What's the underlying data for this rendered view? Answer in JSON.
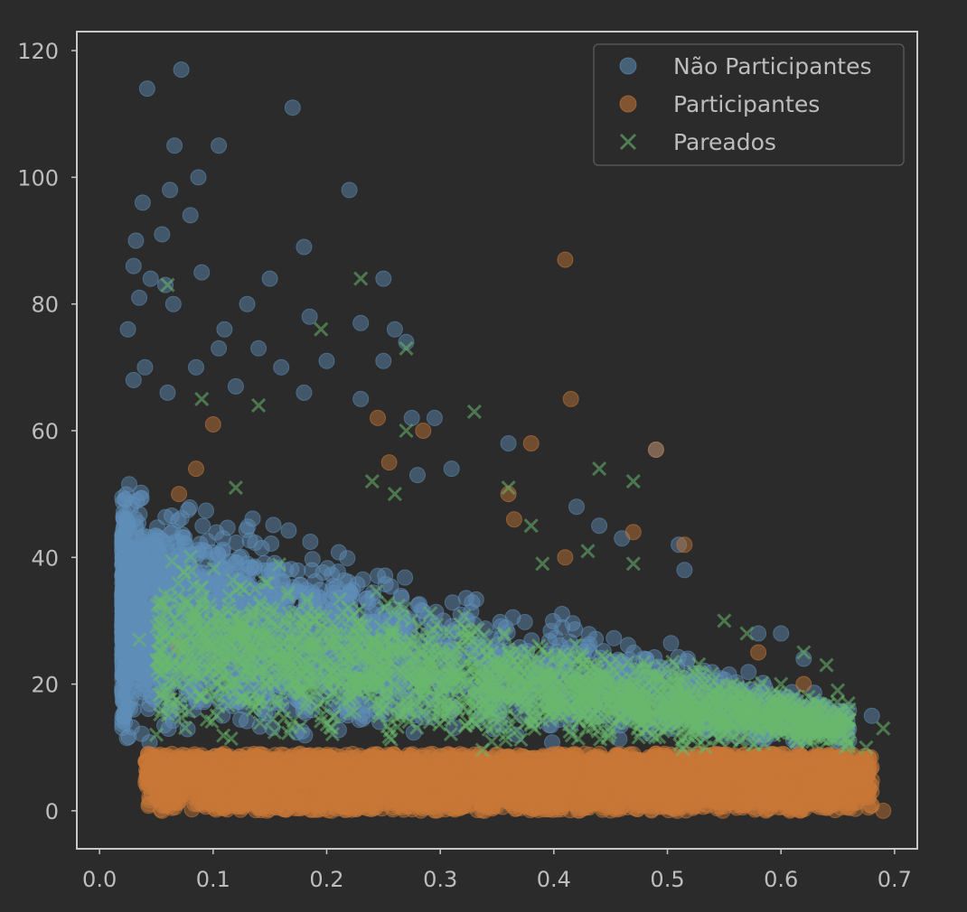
{
  "colors": {
    "background": "#2b2b2b",
    "plot_frame": "#c8c8c8",
    "tick_text": "#bdbdbd",
    "legend_bg": "#2b2b2b",
    "legend_border": "#555555",
    "nao_participantes": "#5f8fb8",
    "participantes": "#c87837",
    "pareados": "#6ab86e"
  },
  "chart_data": {
    "type": "scatter",
    "title": "",
    "xlabel": "",
    "ylabel": "",
    "xlim": [
      -0.02,
      0.72
    ],
    "ylim": [
      -6,
      123
    ],
    "xticks": [
      0.0,
      0.1,
      0.2,
      0.3,
      0.4,
      0.5,
      0.6,
      0.7
    ],
    "xtick_labels": [
      "0.0",
      "0.1",
      "0.2",
      "0.3",
      "0.4",
      "0.5",
      "0.6",
      "0.7"
    ],
    "yticks": [
      0,
      20,
      40,
      60,
      80,
      100,
      120
    ],
    "ytick_labels": [
      "0",
      "20",
      "40",
      "60",
      "80",
      "100",
      "120"
    ],
    "grid": false,
    "legend_position": "top-right",
    "series": [
      {
        "name": "Não Participantes",
        "marker": "circle",
        "color": "#5f8fb8",
        "points": [
          [
            0.042,
            114
          ],
          [
            0.072,
            117
          ],
          [
            0.17,
            111
          ],
          [
            0.066,
            105
          ],
          [
            0.105,
            105
          ],
          [
            0.087,
            100
          ],
          [
            0.062,
            98
          ],
          [
            0.038,
            96
          ],
          [
            0.22,
            98
          ],
          [
            0.032,
            90
          ],
          [
            0.055,
            91
          ],
          [
            0.08,
            94
          ],
          [
            0.18,
            89
          ],
          [
            0.03,
            86
          ],
          [
            0.09,
            85
          ],
          [
            0.045,
            84
          ],
          [
            0.058,
            83
          ],
          [
            0.15,
            84
          ],
          [
            0.25,
            84
          ],
          [
            0.035,
            81
          ],
          [
            0.065,
            80
          ],
          [
            0.13,
            80
          ],
          [
            0.185,
            78
          ],
          [
            0.025,
            76
          ],
          [
            0.11,
            76
          ],
          [
            0.23,
            77
          ],
          [
            0.26,
            76
          ],
          [
            0.105,
            73
          ],
          [
            0.14,
            73
          ],
          [
            0.2,
            71
          ],
          [
            0.25,
            71
          ],
          [
            0.27,
            74
          ],
          [
            0.04,
            70
          ],
          [
            0.085,
            70
          ],
          [
            0.16,
            70
          ],
          [
            0.03,
            68
          ],
          [
            0.12,
            67
          ],
          [
            0.18,
            66
          ],
          [
            0.23,
            65
          ],
          [
            0.06,
            66
          ],
          [
            0.275,
            62
          ],
          [
            0.295,
            62
          ],
          [
            0.36,
            58
          ],
          [
            0.31,
            54
          ],
          [
            0.28,
            53
          ],
          [
            0.49,
            57
          ],
          [
            0.42,
            48
          ],
          [
            0.44,
            45
          ],
          [
            0.46,
            43
          ],
          [
            0.51,
            42
          ],
          [
            0.515,
            38
          ],
          [
            0.6,
            28
          ],
          [
            0.68,
            15
          ],
          [
            0.58,
            28
          ],
          [
            0.62,
            24
          ]
        ]
      },
      {
        "name": "Participantes",
        "marker": "circle",
        "color": "#c87837",
        "points": [
          [
            0.41,
            87
          ],
          [
            0.415,
            65
          ],
          [
            0.49,
            57
          ],
          [
            0.245,
            62
          ],
          [
            0.285,
            60
          ],
          [
            0.255,
            55
          ],
          [
            0.36,
            50
          ],
          [
            0.365,
            46
          ],
          [
            0.41,
            40
          ],
          [
            0.515,
            42
          ],
          [
            0.47,
            44
          ],
          [
            0.1,
            61
          ],
          [
            0.085,
            54
          ],
          [
            0.07,
            50
          ],
          [
            0.07,
            26
          ],
          [
            0.055,
            0
          ],
          [
            0.045,
            5
          ],
          [
            0.06,
            3
          ],
          [
            0.05,
            8
          ],
          [
            0.66,
            5
          ],
          [
            0.69,
            0
          ],
          [
            0.58,
            25
          ],
          [
            0.62,
            20
          ],
          [
            0.38,
            58
          ]
        ]
      },
      {
        "name": "Pareados",
        "marker": "x",
        "color": "#6ab86e",
        "points": [
          [
            0.23,
            84
          ],
          [
            0.195,
            76
          ],
          [
            0.27,
            73
          ],
          [
            0.06,
            83
          ],
          [
            0.09,
            65
          ],
          [
            0.14,
            64
          ],
          [
            0.33,
            63
          ],
          [
            0.27,
            60
          ],
          [
            0.36,
            51
          ],
          [
            0.44,
            54
          ],
          [
            0.47,
            52
          ],
          [
            0.24,
            52
          ],
          [
            0.26,
            50
          ],
          [
            0.38,
            45
          ],
          [
            0.43,
            41
          ],
          [
            0.47,
            39
          ],
          [
            0.39,
            39
          ],
          [
            0.55,
            30
          ],
          [
            0.57,
            28
          ],
          [
            0.62,
            25
          ],
          [
            0.64,
            23
          ],
          [
            0.65,
            19
          ],
          [
            0.66,
            16
          ],
          [
            0.69,
            13
          ],
          [
            0.675,
            10
          ],
          [
            0.6,
            20
          ],
          [
            0.035,
            27
          ],
          [
            0.055,
            25
          ],
          [
            0.05,
            12
          ],
          [
            0.12,
            51
          ]
        ]
      }
    ],
    "dense_clouds": [
      {
        "series": "Não Participantes",
        "count": 2600,
        "x_range": [
          0.02,
          0.66
        ],
        "y_model": "decreasing",
        "y_max_at_0": 50,
        "y_max_at_07": 15,
        "y_min": 9,
        "concentrate_left": true
      },
      {
        "series": "Participantes",
        "count": 3200,
        "x_range": [
          0.04,
          0.68
        ],
        "y_range": [
          0,
          9
        ]
      },
      {
        "series": "Pareados",
        "count": 2200,
        "x_range": [
          0.05,
          0.66
        ],
        "y_model": "decreasing",
        "y_max_at_0": 42,
        "y_max_at_07": 15,
        "y_min": 9
      }
    ]
  }
}
